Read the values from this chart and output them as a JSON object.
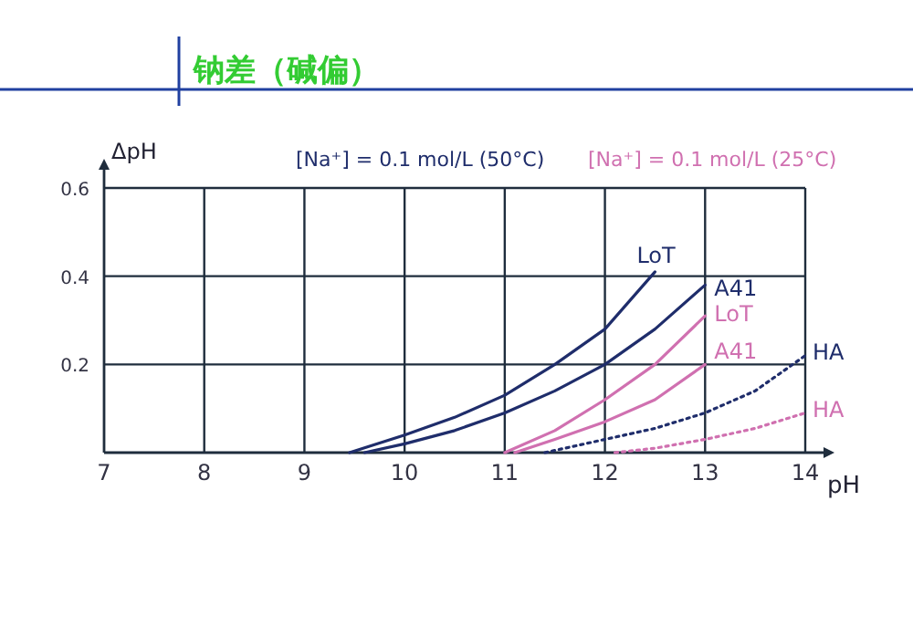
{
  "chart_data": {
    "type": "line",
    "title": "钠差（碱偏）",
    "xlabel": "pH",
    "ylabel": "ΔpH",
    "annotations": [
      "[Na⁺] = 0.1 mol/L (50°C)",
      "[Na⁺] = 0.1 mol/L (25°C)"
    ],
    "xlim": [
      7,
      14
    ],
    "xticks": [
      7,
      8,
      9,
      10,
      11,
      12,
      13,
      14
    ],
    "ylim": [
      0,
      0.6
    ],
    "yticks": [
      0.2,
      0.4,
      0.6
    ],
    "grid": true,
    "series": [
      {
        "name": "LoT",
        "color": "#1f2d6b",
        "x": [
          9.45,
          10,
          10.5,
          11,
          11.5,
          12,
          12.5
        ],
        "values": [
          0,
          0.04,
          0.08,
          0.13,
          0.2,
          0.28,
          0.41
        ]
      },
      {
        "name": "A41",
        "color": "#1f2d6b",
        "x": [
          9.6,
          10,
          10.5,
          11,
          11.5,
          12,
          12.5,
          13
        ],
        "values": [
          0,
          0.02,
          0.05,
          0.09,
          0.14,
          0.2,
          0.28,
          0.38
        ]
      },
      {
        "name": "LoT",
        "color": "#d070b0",
        "x": [
          11,
          11.5,
          12,
          12.5,
          13
        ],
        "values": [
          0,
          0.05,
          0.12,
          0.2,
          0.31
        ]
      },
      {
        "name": "A41",
        "color": "#d070b0",
        "x": [
          11.1,
          11.5,
          12,
          12.5,
          13
        ],
        "values": [
          0,
          0.03,
          0.07,
          0.12,
          0.2
        ]
      },
      {
        "name": "HA",
        "color": "#1f2d6b",
        "line_style": "dotted",
        "x": [
          11.4,
          12,
          12.5,
          13,
          13.5,
          14
        ],
        "values": [
          0,
          0.03,
          0.055,
          0.09,
          0.14,
          0.22
        ]
      },
      {
        "name": "HA",
        "color": "#d070b0",
        "line_style": "dotted",
        "x": [
          12.1,
          12.5,
          13,
          13.5,
          14
        ],
        "values": [
          0,
          0.01,
          0.03,
          0.055,
          0.09
        ]
      }
    ]
  }
}
